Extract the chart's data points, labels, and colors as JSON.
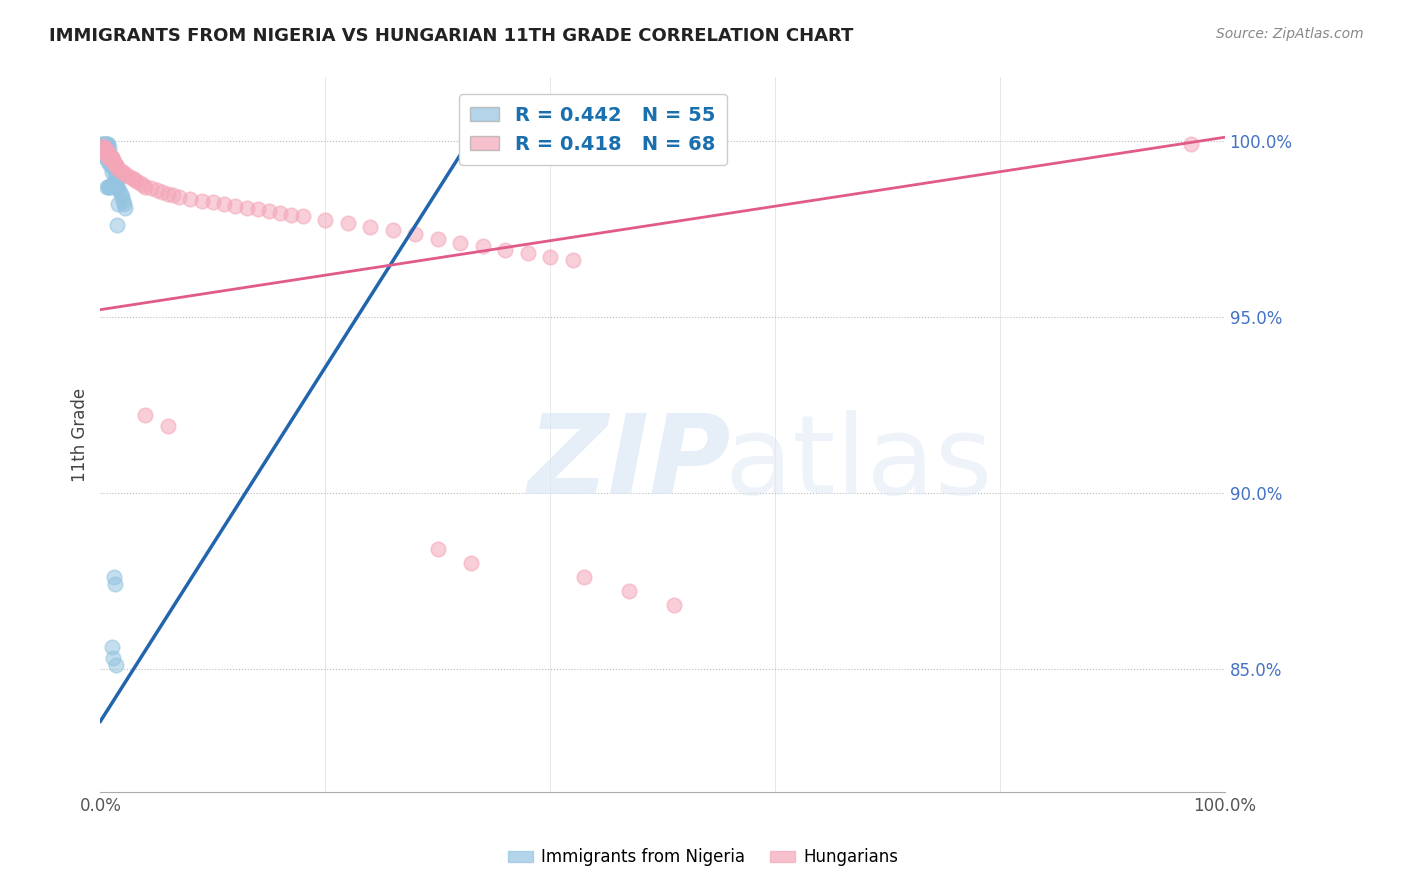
{
  "title": "IMMIGRANTS FROM NIGERIA VS HUNGARIAN 11TH GRADE CORRELATION CHART",
  "source": "Source: ZipAtlas.com",
  "ylabel": "11th Grade",
  "legend_blue_label": "Immigrants from Nigeria",
  "legend_pink_label": "Hungarians",
  "r_blue": 0.442,
  "n_blue": 55,
  "r_pink": 0.418,
  "n_pink": 68,
  "ytick_labels": [
    "85.0%",
    "90.0%",
    "95.0%",
    "100.0%"
  ],
  "ytick_values": [
    0.85,
    0.9,
    0.95,
    1.0
  ],
  "xlim": [
    0.0,
    1.0
  ],
  "ylim": [
    0.815,
    1.018
  ],
  "blue_color": "#94c4e0",
  "pink_color": "#f4a6b8",
  "blue_line_color": "#2166ac",
  "pink_line_color": "#e05a8a",
  "blue_scatter_x": [
    0.001,
    0.002,
    0.002,
    0.003,
    0.003,
    0.003,
    0.004,
    0.004,
    0.005,
    0.005,
    0.005,
    0.005,
    0.006,
    0.006,
    0.006,
    0.006,
    0.006,
    0.007,
    0.007,
    0.007,
    0.007,
    0.007,
    0.008,
    0.008,
    0.008,
    0.009,
    0.009,
    0.009,
    0.01,
    0.01,
    0.01,
    0.011,
    0.011,
    0.012,
    0.012,
    0.013,
    0.013,
    0.014,
    0.014,
    0.015,
    0.015,
    0.015,
    0.016,
    0.016,
    0.017,
    0.018,
    0.019,
    0.02,
    0.021,
    0.022,
    0.012,
    0.013,
    0.01,
    0.011,
    0.014
  ],
  "blue_scatter_y": [
    0.999,
    0.999,
    0.9985,
    0.999,
    0.998,
    0.996,
    0.999,
    0.997,
    0.999,
    0.997,
    0.996,
    0.995,
    0.999,
    0.9975,
    0.996,
    0.995,
    0.987,
    0.999,
    0.997,
    0.996,
    0.994,
    0.987,
    0.998,
    0.996,
    0.987,
    0.995,
    0.993,
    0.987,
    0.995,
    0.993,
    0.991,
    0.994,
    0.988,
    0.992,
    0.988,
    0.991,
    0.987,
    0.99,
    0.987,
    0.989,
    0.987,
    0.976,
    0.989,
    0.982,
    0.986,
    0.985,
    0.984,
    0.983,
    0.982,
    0.981,
    0.876,
    0.874,
    0.856,
    0.853,
    0.851
  ],
  "pink_scatter_x": [
    0.002,
    0.003,
    0.004,
    0.004,
    0.005,
    0.005,
    0.006,
    0.006,
    0.007,
    0.007,
    0.008,
    0.008,
    0.009,
    0.01,
    0.01,
    0.011,
    0.012,
    0.013,
    0.014,
    0.015,
    0.016,
    0.018,
    0.02,
    0.022,
    0.025,
    0.028,
    0.03,
    0.032,
    0.035,
    0.038,
    0.04,
    0.045,
    0.05,
    0.055,
    0.06,
    0.065,
    0.07,
    0.08,
    0.09,
    0.1,
    0.11,
    0.12,
    0.13,
    0.14,
    0.15,
    0.16,
    0.17,
    0.18,
    0.2,
    0.22,
    0.24,
    0.26,
    0.28,
    0.3,
    0.32,
    0.34,
    0.36,
    0.38,
    0.4,
    0.42,
    0.04,
    0.06,
    0.3,
    0.33,
    0.43,
    0.47,
    0.51,
    0.97
  ],
  "pink_scatter_y": [
    0.9985,
    0.998,
    0.998,
    0.997,
    0.9975,
    0.9965,
    0.997,
    0.996,
    0.9965,
    0.9955,
    0.996,
    0.995,
    0.995,
    0.9955,
    0.9945,
    0.9945,
    0.994,
    0.9935,
    0.993,
    0.9925,
    0.992,
    0.9915,
    0.991,
    0.9905,
    0.99,
    0.9895,
    0.989,
    0.9885,
    0.988,
    0.9875,
    0.987,
    0.9865,
    0.986,
    0.9855,
    0.985,
    0.9845,
    0.984,
    0.9835,
    0.983,
    0.9825,
    0.982,
    0.9815,
    0.981,
    0.9805,
    0.98,
    0.9795,
    0.979,
    0.9785,
    0.9775,
    0.9765,
    0.9755,
    0.9745,
    0.9735,
    0.972,
    0.971,
    0.97,
    0.969,
    0.968,
    0.967,
    0.966,
    0.922,
    0.919,
    0.884,
    0.88,
    0.876,
    0.872,
    0.868,
    0.999
  ],
  "blue_line": [
    [
      0.0,
      0.835
    ],
    [
      0.33,
      1.001
    ]
  ],
  "pink_line": [
    [
      0.0,
      0.952
    ],
    [
      1.0,
      1.001
    ]
  ]
}
